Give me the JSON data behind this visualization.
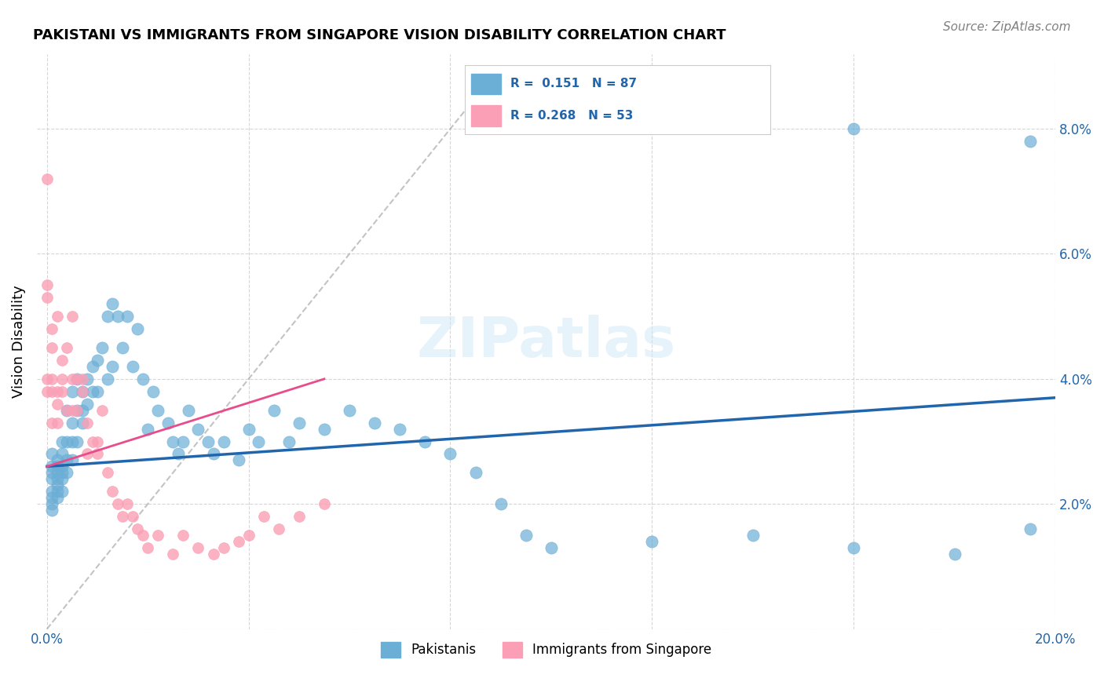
{
  "title": "PAKISTANI VS IMMIGRANTS FROM SINGAPORE VISION DISABILITY CORRELATION CHART",
  "source": "Source: ZipAtlas.com",
  "xlabel": "",
  "ylabel": "Vision Disability",
  "xlim": [
    0.0,
    0.2
  ],
  "ylim": [
    0.0,
    0.09
  ],
  "xticks": [
    0.0,
    0.04,
    0.08,
    0.12,
    0.16,
    0.2
  ],
  "xticklabels": [
    "0.0%",
    "",
    "",
    "",
    "",
    "20.0%"
  ],
  "yticks": [
    0.0,
    0.02,
    0.04,
    0.06,
    0.08
  ],
  "yticklabels": [
    "",
    "2.0%",
    "4.0%",
    "6.0%",
    "8.0%"
  ],
  "pakistani_color": "#6baed6",
  "singapore_color": "#fa9fb5",
  "trend_blue_color": "#2166ac",
  "trend_pink_color": "#e84c8b",
  "diagonal_color": "#aaaaaa",
  "R_pakistani": 0.151,
  "N_pakistani": 87,
  "R_singapore": 0.268,
  "N_singapore": 53,
  "pakistani_x": [
    0.001,
    0.001,
    0.001,
    0.001,
    0.001,
    0.001,
    0.001,
    0.001,
    0.002,
    0.002,
    0.002,
    0.002,
    0.002,
    0.002,
    0.002,
    0.003,
    0.003,
    0.003,
    0.003,
    0.003,
    0.003,
    0.004,
    0.004,
    0.004,
    0.004,
    0.005,
    0.005,
    0.005,
    0.005,
    0.006,
    0.006,
    0.006,
    0.007,
    0.007,
    0.007,
    0.008,
    0.008,
    0.009,
    0.009,
    0.01,
    0.01,
    0.011,
    0.012,
    0.012,
    0.013,
    0.013,
    0.014,
    0.015,
    0.016,
    0.017,
    0.018,
    0.019,
    0.02,
    0.021,
    0.022,
    0.024,
    0.025,
    0.026,
    0.027,
    0.028,
    0.03,
    0.032,
    0.033,
    0.035,
    0.038,
    0.04,
    0.042,
    0.045,
    0.048,
    0.05,
    0.055,
    0.06,
    0.065,
    0.07,
    0.075,
    0.08,
    0.085,
    0.09,
    0.095,
    0.1,
    0.12,
    0.14,
    0.16,
    0.18,
    0.195,
    0.16,
    0.195
  ],
  "pakistani_y": [
    0.026,
    0.025,
    0.024,
    0.028,
    0.022,
    0.021,
    0.02,
    0.019,
    0.027,
    0.026,
    0.025,
    0.024,
    0.023,
    0.022,
    0.021,
    0.03,
    0.028,
    0.026,
    0.025,
    0.024,
    0.022,
    0.035,
    0.03,
    0.027,
    0.025,
    0.038,
    0.033,
    0.03,
    0.027,
    0.04,
    0.035,
    0.03,
    0.038,
    0.035,
    0.033,
    0.04,
    0.036,
    0.042,
    0.038,
    0.043,
    0.038,
    0.045,
    0.05,
    0.04,
    0.052,
    0.042,
    0.05,
    0.045,
    0.05,
    0.042,
    0.048,
    0.04,
    0.032,
    0.038,
    0.035,
    0.033,
    0.03,
    0.028,
    0.03,
    0.035,
    0.032,
    0.03,
    0.028,
    0.03,
    0.027,
    0.032,
    0.03,
    0.035,
    0.03,
    0.033,
    0.032,
    0.035,
    0.033,
    0.032,
    0.03,
    0.028,
    0.025,
    0.02,
    0.015,
    0.013,
    0.014,
    0.015,
    0.013,
    0.012,
    0.016,
    0.08,
    0.078
  ],
  "singapore_x": [
    0.0,
    0.0,
    0.0,
    0.0,
    0.0,
    0.001,
    0.001,
    0.001,
    0.001,
    0.001,
    0.002,
    0.002,
    0.002,
    0.002,
    0.003,
    0.003,
    0.003,
    0.004,
    0.004,
    0.005,
    0.005,
    0.005,
    0.006,
    0.006,
    0.007,
    0.007,
    0.008,
    0.008,
    0.009,
    0.01,
    0.01,
    0.011,
    0.012,
    0.013,
    0.014,
    0.015,
    0.016,
    0.017,
    0.018,
    0.019,
    0.02,
    0.022,
    0.025,
    0.027,
    0.03,
    0.033,
    0.035,
    0.038,
    0.04,
    0.043,
    0.046,
    0.05,
    0.055
  ],
  "singapore_y": [
    0.072,
    0.055,
    0.053,
    0.04,
    0.038,
    0.048,
    0.045,
    0.04,
    0.038,
    0.033,
    0.05,
    0.038,
    0.036,
    0.033,
    0.043,
    0.04,
    0.038,
    0.045,
    0.035,
    0.05,
    0.04,
    0.035,
    0.04,
    0.035,
    0.04,
    0.038,
    0.033,
    0.028,
    0.03,
    0.03,
    0.028,
    0.035,
    0.025,
    0.022,
    0.02,
    0.018,
    0.02,
    0.018,
    0.016,
    0.015,
    0.013,
    0.015,
    0.012,
    0.015,
    0.013,
    0.012,
    0.013,
    0.014,
    0.015,
    0.018,
    0.016,
    0.018,
    0.02
  ],
  "watermark": "ZIPatlas",
  "legend_title_color": "#2166ac",
  "background_color": "#ffffff",
  "grid_color": "#cccccc"
}
